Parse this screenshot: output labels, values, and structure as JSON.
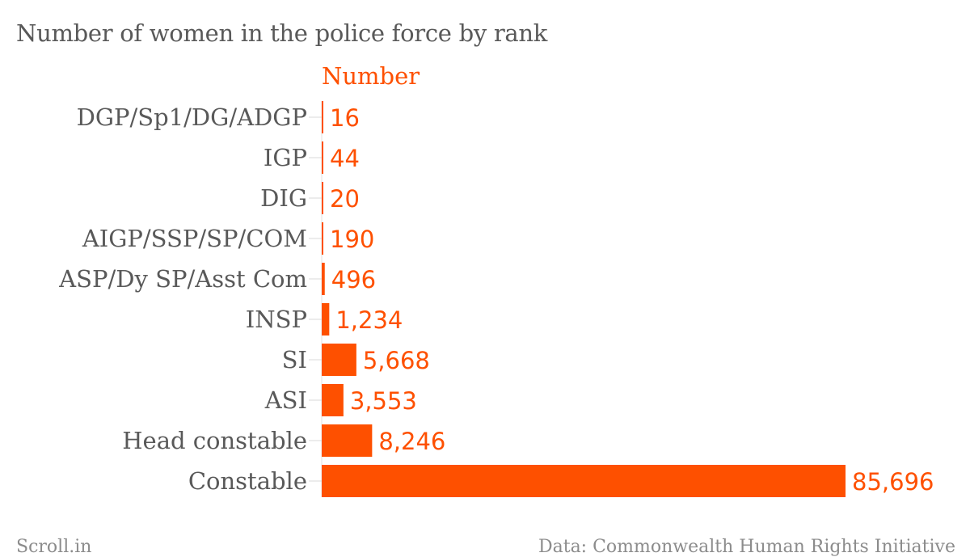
{
  "chart_data": {
    "type": "bar",
    "orientation": "horizontal",
    "title": "Number of women in the police force by rank",
    "series": [
      {
        "name": "Number",
        "color": "#fe5000",
        "values": [
          16,
          44,
          20,
          190,
          496,
          1234,
          5668,
          3553,
          8246,
          85696
        ],
        "value_labels": [
          "16",
          "44",
          "20",
          "190",
          "496",
          "1,234",
          "5,668",
          "3,553",
          "8,246",
          "85,696"
        ]
      }
    ],
    "categories": [
      "DGP/Sp1/DG/ADGP",
      "IGP",
      "DIG",
      "AIGP/SSP/SP/COM",
      "ASP/Dy SP/Asst Com",
      "INSP",
      "SI",
      "ASI",
      "Head constable",
      "Constable"
    ],
    "xlim": [
      0,
      85696
    ],
    "grid": false,
    "legend": "top"
  },
  "footer": {
    "source": "Scroll.in",
    "credit": "Data: Commonwealth Human Rights Initiative"
  }
}
